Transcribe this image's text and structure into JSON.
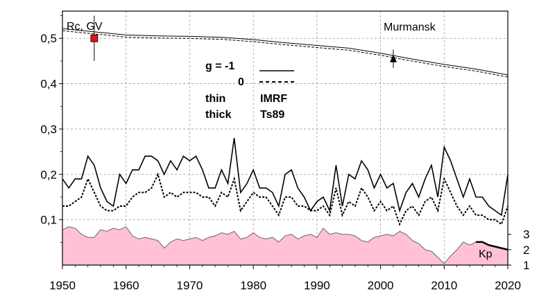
{
  "chart_data": {
    "type": "line",
    "title": "",
    "xlabel": "",
    "ylabel": "Rc, GV",
    "location_label": "Murmansk",
    "xlim": [
      1950,
      2020
    ],
    "ylim": [
      0,
      0.56
    ],
    "x_ticks": [
      1950,
      1960,
      1970,
      1980,
      1990,
      2000,
      2010,
      2020
    ],
    "y_ticks": [
      {
        "v": 0.1,
        "label": "0,1"
      },
      {
        "v": 0.2,
        "label": "0,2"
      },
      {
        "v": 0.3,
        "label": "0,3"
      },
      {
        "v": 0.4,
        "label": "0,4"
      },
      {
        "v": 0.5,
        "label": "0,5"
      }
    ],
    "grid": true,
    "legend": {
      "g_label": "g  = -1",
      "zero_label": "0",
      "thin_label": "thin",
      "thick_label": "thick",
      "imrf_label": "IMRF",
      "ts89_label": "Ts89"
    },
    "series": [
      {
        "style": "double-line",
        "x": [
          1950,
          1955,
          1960,
          1965,
          1970,
          1975,
          1980,
          1985,
          1990,
          1995,
          2000,
          2005,
          2010,
          2015,
          2020
        ],
        "values": [
          0.519,
          0.512,
          0.505,
          0.503,
          0.502,
          0.5,
          0.495,
          0.488,
          0.482,
          0.476,
          0.465,
          0.452,
          0.44,
          0.43,
          0.417
        ]
      },
      {
        "style": "solid",
        "x": [
          1950,
          1951,
          1952,
          1953,
          1954,
          1955,
          1956,
          1957,
          1958,
          1959,
          1960,
          1961,
          1962,
          1963,
          1964,
          1965,
          1966,
          1967,
          1968,
          1969,
          1970,
          1971,
          1972,
          1973,
          1974,
          1975,
          1976,
          1977,
          1978,
          1979,
          1980,
          1981,
          1982,
          1983,
          1984,
          1985,
          1986,
          1987,
          1988,
          1989,
          1990,
          1991,
          1992,
          1993,
          1994,
          1995,
          1996,
          1997,
          1998,
          1999,
          2000,
          2001,
          2002,
          2003,
          2004,
          2005,
          2006,
          2007,
          2008,
          2009,
          2010,
          2011,
          2012,
          2013,
          2014,
          2015,
          2016,
          2017,
          2018,
          2019,
          2020
        ],
        "values": [
          0.19,
          0.17,
          0.19,
          0.19,
          0.24,
          0.22,
          0.17,
          0.14,
          0.13,
          0.2,
          0.18,
          0.21,
          0.21,
          0.24,
          0.24,
          0.23,
          0.2,
          0.23,
          0.21,
          0.24,
          0.23,
          0.24,
          0.21,
          0.17,
          0.17,
          0.21,
          0.18,
          0.28,
          0.16,
          0.18,
          0.21,
          0.17,
          0.17,
          0.16,
          0.13,
          0.2,
          0.21,
          0.17,
          0.15,
          0.12,
          0.14,
          0.15,
          0.12,
          0.22,
          0.13,
          0.2,
          0.19,
          0.23,
          0.21,
          0.17,
          0.2,
          0.17,
          0.18,
          0.12,
          0.16,
          0.18,
          0.15,
          0.19,
          0.22,
          0.15,
          0.26,
          0.23,
          0.19,
          0.15,
          0.19,
          0.15,
          0.15,
          0.13,
          0.12,
          0.11,
          0.2
        ]
      },
      {
        "style": "dashed",
        "x": [
          1950,
          1951,
          1952,
          1953,
          1954,
          1955,
          1956,
          1957,
          1958,
          1959,
          1960,
          1961,
          1962,
          1963,
          1964,
          1965,
          1966,
          1967,
          1968,
          1969,
          1970,
          1971,
          1972,
          1973,
          1974,
          1975,
          1976,
          1977,
          1978,
          1979,
          1980,
          1981,
          1982,
          1983,
          1984,
          1985,
          1986,
          1987,
          1988,
          1989,
          1990,
          1991,
          1992,
          1993,
          1994,
          1995,
          1996,
          1997,
          1998,
          1999,
          2000,
          2001,
          2002,
          2003,
          2004,
          2005,
          2006,
          2007,
          2008,
          2009,
          2010,
          2011,
          2012,
          2013,
          2014,
          2015,
          2016,
          2017,
          2018,
          2019,
          2020
        ],
        "values": [
          0.13,
          0.13,
          0.14,
          0.15,
          0.19,
          0.16,
          0.13,
          0.12,
          0.12,
          0.13,
          0.13,
          0.15,
          0.16,
          0.16,
          0.17,
          0.2,
          0.15,
          0.16,
          0.15,
          0.16,
          0.16,
          0.16,
          0.15,
          0.15,
          0.13,
          0.16,
          0.15,
          0.19,
          0.12,
          0.14,
          0.16,
          0.15,
          0.15,
          0.13,
          0.11,
          0.15,
          0.15,
          0.13,
          0.13,
          0.12,
          0.12,
          0.13,
          0.11,
          0.17,
          0.11,
          0.14,
          0.13,
          0.17,
          0.15,
          0.12,
          0.14,
          0.12,
          0.13,
          0.09,
          0.12,
          0.13,
          0.11,
          0.14,
          0.15,
          0.12,
          0.19,
          0.16,
          0.13,
          0.11,
          0.13,
          0.11,
          0.11,
          0.1,
          0.1,
          0.09,
          0.13
        ]
      }
    ],
    "markers": [
      {
        "shape": "square",
        "color": "#e0121b",
        "x": 1955,
        "y": 0.5,
        "err": 0.05
      },
      {
        "shape": "triangle",
        "color": "#000000",
        "x": 2002,
        "y": 0.455,
        "err": 0.02
      }
    ],
    "kp": {
      "label": "Kp",
      "fill": "#ffc0d8",
      "edge": "#5c6e57",
      "ticks": [
        {
          "v": 1,
          "label": "1"
        },
        {
          "v": 2,
          "label": "2"
        },
        {
          "v": 3,
          "label": "3"
        }
      ],
      "ylim": [
        1,
        3.8
      ],
      "x": [
        1950,
        1951,
        1952,
        1953,
        1954,
        1955,
        1956,
        1957,
        1958,
        1959,
        1960,
        1961,
        1962,
        1963,
        1964,
        1965,
        1966,
        1967,
        1968,
        1969,
        1970,
        1971,
        1972,
        1973,
        1974,
        1975,
        1976,
        1977,
        1978,
        1979,
        1980,
        1981,
        1982,
        1983,
        1984,
        1985,
        1986,
        1987,
        1988,
        1989,
        1990,
        1991,
        1992,
        1993,
        1994,
        1995,
        1996,
        1997,
        1998,
        1999,
        2000,
        2001,
        2002,
        2003,
        2004,
        2005,
        2006,
        2007,
        2008,
        2009,
        2010,
        2011,
        2012,
        2013,
        2014,
        2015,
        2016,
        2017,
        2018,
        2019,
        2020
      ],
      "values": [
        3.3,
        3.5,
        3.4,
        3.0,
        2.8,
        2.8,
        3.3,
        3.2,
        3.4,
        3.3,
        3.5,
        2.9,
        2.7,
        2.8,
        2.7,
        2.6,
        2.1,
        2.5,
        2.7,
        2.6,
        2.7,
        2.8,
        2.6,
        2.8,
        2.9,
        3.1,
        3.0,
        3.2,
        2.7,
        2.8,
        3.1,
        2.8,
        2.7,
        2.8,
        2.5,
        2.9,
        3.0,
        2.7,
        2.9,
        3.0,
        2.8,
        3.4,
        3.0,
        3.1,
        3.0,
        3.0,
        2.9,
        2.6,
        2.5,
        2.8,
        2.9,
        3.0,
        2.9,
        3.2,
        3.0,
        2.6,
        2.4,
        2.0,
        1.9,
        1.5,
        1.1,
        1.6,
        2.0,
        2.5,
        2.3,
        2.5,
        2.5,
        2.3,
        2.2,
        2.1,
        2.0
      ],
      "highlight_from": 2015,
      "highlight_color": "#000000"
    }
  }
}
